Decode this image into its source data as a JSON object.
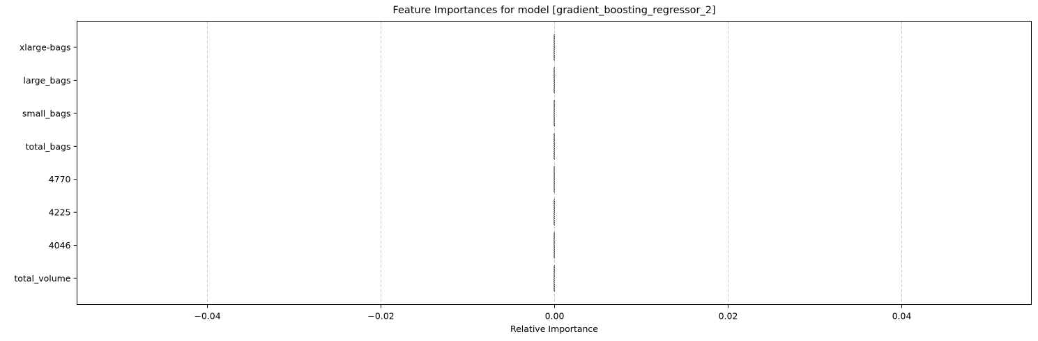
{
  "chart_data": {
    "type": "bar",
    "orientation": "horizontal",
    "title": "Feature Importances for model [gradient_boosting_regressor_2]",
    "xlabel": "Relative Importance",
    "ylabel": "",
    "categories": [
      "total_volume",
      "4046",
      "4225",
      "4770",
      "total_bags",
      "small_bags",
      "large_bags",
      "xlarge-bags"
    ],
    "values": [
      0,
      0,
      0,
      0,
      0,
      0,
      0,
      0
    ],
    "xlim": [
      -0.055,
      0.055
    ],
    "xticks": [
      -0.04,
      -0.02,
      0.0,
      0.02,
      0.04
    ],
    "xtick_labels": [
      "−0.04",
      "−0.02",
      "0.00",
      "0.02",
      "0.04"
    ],
    "grid": "vertical-dashed",
    "legend": "none",
    "colors": {
      "bar_edge": "#000000",
      "grid": "#c8c8c8",
      "axis": "#000000"
    }
  }
}
